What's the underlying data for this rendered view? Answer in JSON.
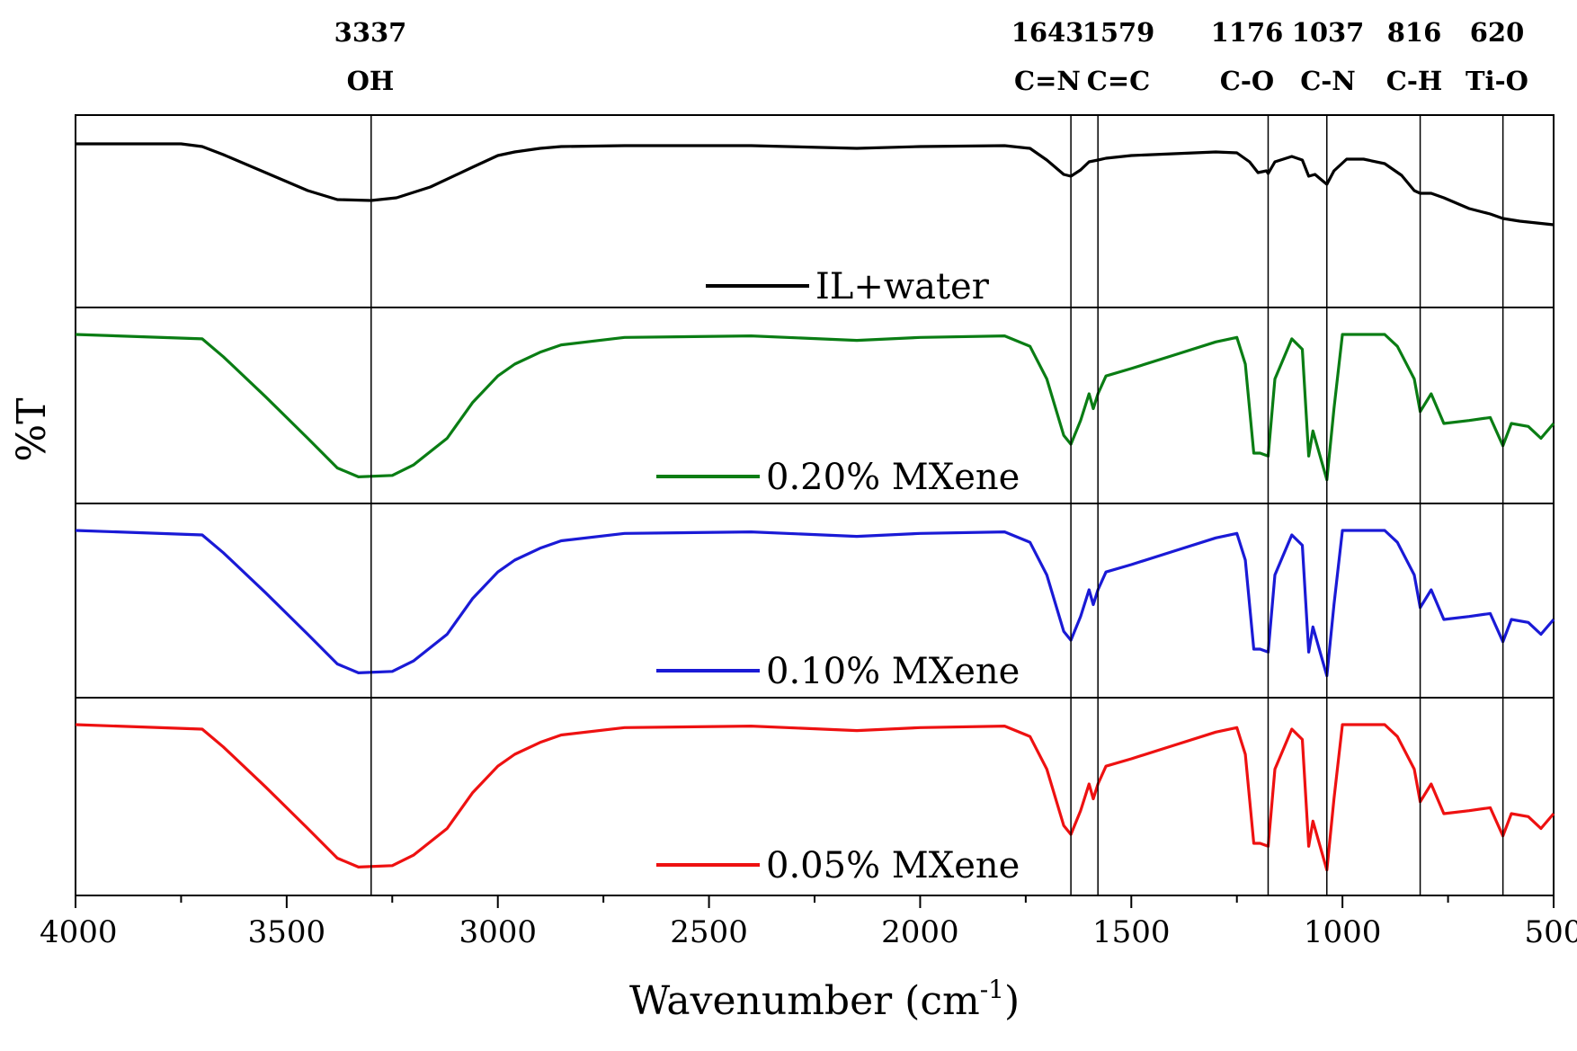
{
  "chart_data": {
    "type": "line",
    "title": "",
    "xlabel": "Wavenumber (cm-1)",
    "xlabel_main": "Wavenumber (cm",
    "xlabel_sup": "-1",
    "xlabel_end": ")",
    "ylabel": "%T",
    "xlim": [
      4000,
      500
    ],
    "x_reversed": true,
    "x_ticks": [
      4000,
      3500,
      3000,
      2500,
      2000,
      1500,
      1000,
      500
    ],
    "x_tick_labels": [
      "4000",
      "3500",
      "3000",
      "2500",
      "2000",
      "1500",
      "1000",
      "500"
    ],
    "y_ticks_shown": false,
    "grid": false,
    "layout": "stacked-panels",
    "peak_lines": [
      {
        "x": 3300,
        "value": "3337",
        "group": "OH"
      },
      {
        "x": 1643,
        "value": "1643",
        "group": "C=N"
      },
      {
        "x": 1579,
        "value": "1579",
        "group": "C=C"
      },
      {
        "x": 1176,
        "value": "1176",
        "group": "C-O"
      },
      {
        "x": 1037,
        "value": "1037",
        "group": "C-N"
      },
      {
        "x": 816,
        "value": "816",
        "group": "C-H"
      },
      {
        "x": 620,
        "value": "620",
        "group": "Ti-O"
      }
    ],
    "series": [
      {
        "name": "IL+water",
        "color": "#000000",
        "points": [
          [
            4000,
            0.0
          ],
          [
            3750,
            0.0
          ],
          [
            3700,
            -0.03
          ],
          [
            3650,
            -0.12
          ],
          [
            3550,
            -0.32
          ],
          [
            3450,
            -0.52
          ],
          [
            3380,
            -0.62
          ],
          [
            3300,
            -0.63
          ],
          [
            3240,
            -0.6
          ],
          [
            3160,
            -0.48
          ],
          [
            3060,
            -0.26
          ],
          [
            3000,
            -0.13
          ],
          [
            2960,
            -0.09
          ],
          [
            2900,
            -0.05
          ],
          [
            2850,
            -0.03
          ],
          [
            2700,
            -0.02
          ],
          [
            2400,
            -0.02
          ],
          [
            2150,
            -0.05
          ],
          [
            2000,
            -0.03
          ],
          [
            1800,
            -0.02
          ],
          [
            1740,
            -0.05
          ],
          [
            1700,
            -0.18
          ],
          [
            1660,
            -0.34
          ],
          [
            1643,
            -0.36
          ],
          [
            1620,
            -0.29
          ],
          [
            1600,
            -0.2
          ],
          [
            1579,
            -0.18
          ],
          [
            1560,
            -0.16
          ],
          [
            1500,
            -0.13
          ],
          [
            1400,
            -0.11
          ],
          [
            1300,
            -0.09
          ],
          [
            1250,
            -0.1
          ],
          [
            1220,
            -0.2
          ],
          [
            1200,
            -0.32
          ],
          [
            1180,
            -0.3
          ],
          [
            1176,
            -0.33
          ],
          [
            1160,
            -0.2
          ],
          [
            1120,
            -0.14
          ],
          [
            1095,
            -0.18
          ],
          [
            1080,
            -0.36
          ],
          [
            1065,
            -0.34
          ],
          [
            1050,
            -0.4
          ],
          [
            1037,
            -0.45
          ],
          [
            1020,
            -0.3
          ],
          [
            990,
            -0.17
          ],
          [
            950,
            -0.17
          ],
          [
            900,
            -0.22
          ],
          [
            860,
            -0.35
          ],
          [
            830,
            -0.52
          ],
          [
            816,
            -0.55
          ],
          [
            790,
            -0.55
          ],
          [
            760,
            -0.6
          ],
          [
            700,
            -0.72
          ],
          [
            650,
            -0.78
          ],
          [
            620,
            -0.83
          ],
          [
            580,
            -0.86
          ],
          [
            540,
            -0.88
          ],
          [
            500,
            -0.9
          ]
        ]
      },
      {
        "name": "0.20% MXene",
        "color": "#0a7d14",
        "points": [
          [
            4000,
            0.0
          ],
          [
            3700,
            -0.03
          ],
          [
            3650,
            -0.15
          ],
          [
            3550,
            -0.42
          ],
          [
            3450,
            -0.7
          ],
          [
            3380,
            -0.9
          ],
          [
            3330,
            -0.96
          ],
          [
            3250,
            -0.95
          ],
          [
            3200,
            -0.88
          ],
          [
            3120,
            -0.7
          ],
          [
            3060,
            -0.46
          ],
          [
            3000,
            -0.28
          ],
          [
            2960,
            -0.2
          ],
          [
            2900,
            -0.12
          ],
          [
            2850,
            -0.07
          ],
          [
            2700,
            -0.02
          ],
          [
            2400,
            -0.01
          ],
          [
            2150,
            -0.04
          ],
          [
            2000,
            -0.02
          ],
          [
            1800,
            -0.01
          ],
          [
            1740,
            -0.08
          ],
          [
            1700,
            -0.3
          ],
          [
            1660,
            -0.68
          ],
          [
            1643,
            -0.74
          ],
          [
            1620,
            -0.58
          ],
          [
            1600,
            -0.4
          ],
          [
            1590,
            -0.5
          ],
          [
            1579,
            -0.4
          ],
          [
            1560,
            -0.28
          ],
          [
            1500,
            -0.23
          ],
          [
            1400,
            -0.14
          ],
          [
            1300,
            -0.05
          ],
          [
            1250,
            -0.02
          ],
          [
            1230,
            -0.2
          ],
          [
            1210,
            -0.8
          ],
          [
            1195,
            -0.8
          ],
          [
            1176,
            -0.82
          ],
          [
            1160,
            -0.3
          ],
          [
            1120,
            -0.03
          ],
          [
            1095,
            -0.1
          ],
          [
            1080,
            -0.82
          ],
          [
            1070,
            -0.65
          ],
          [
            1050,
            -0.85
          ],
          [
            1037,
            -0.98
          ],
          [
            1020,
            -0.5
          ],
          [
            1000,
            0.0
          ],
          [
            900,
            0.0
          ],
          [
            870,
            -0.08
          ],
          [
            830,
            -0.3
          ],
          [
            816,
            -0.52
          ],
          [
            790,
            -0.4
          ],
          [
            760,
            -0.6
          ],
          [
            700,
            -0.58
          ],
          [
            650,
            -0.56
          ],
          [
            620,
            -0.75
          ],
          [
            600,
            -0.6
          ],
          [
            560,
            -0.62
          ],
          [
            530,
            -0.7
          ],
          [
            500,
            -0.6
          ]
        ]
      },
      {
        "name": "0.10% MXene",
        "color": "#1a1ad6",
        "points": [
          [
            4000,
            0.0
          ],
          [
            3700,
            -0.03
          ],
          [
            3650,
            -0.15
          ],
          [
            3550,
            -0.42
          ],
          [
            3450,
            -0.7
          ],
          [
            3380,
            -0.9
          ],
          [
            3330,
            -0.96
          ],
          [
            3250,
            -0.95
          ],
          [
            3200,
            -0.88
          ],
          [
            3120,
            -0.7
          ],
          [
            3060,
            -0.46
          ],
          [
            3000,
            -0.28
          ],
          [
            2960,
            -0.2
          ],
          [
            2900,
            -0.12
          ],
          [
            2850,
            -0.07
          ],
          [
            2700,
            -0.02
          ],
          [
            2400,
            -0.01
          ],
          [
            2150,
            -0.04
          ],
          [
            2000,
            -0.02
          ],
          [
            1800,
            -0.01
          ],
          [
            1740,
            -0.08
          ],
          [
            1700,
            -0.3
          ],
          [
            1660,
            -0.68
          ],
          [
            1643,
            -0.74
          ],
          [
            1620,
            -0.58
          ],
          [
            1600,
            -0.4
          ],
          [
            1590,
            -0.5
          ],
          [
            1579,
            -0.4
          ],
          [
            1560,
            -0.28
          ],
          [
            1500,
            -0.23
          ],
          [
            1400,
            -0.14
          ],
          [
            1300,
            -0.05
          ],
          [
            1250,
            -0.02
          ],
          [
            1230,
            -0.2
          ],
          [
            1210,
            -0.8
          ],
          [
            1195,
            -0.8
          ],
          [
            1176,
            -0.82
          ],
          [
            1160,
            -0.3
          ],
          [
            1120,
            -0.03
          ],
          [
            1095,
            -0.1
          ],
          [
            1080,
            -0.82
          ],
          [
            1070,
            -0.65
          ],
          [
            1050,
            -0.85
          ],
          [
            1037,
            -0.98
          ],
          [
            1020,
            -0.5
          ],
          [
            1000,
            0.0
          ],
          [
            900,
            0.0
          ],
          [
            870,
            -0.08
          ],
          [
            830,
            -0.3
          ],
          [
            816,
            -0.52
          ],
          [
            790,
            -0.4
          ],
          [
            760,
            -0.6
          ],
          [
            700,
            -0.58
          ],
          [
            650,
            -0.56
          ],
          [
            620,
            -0.75
          ],
          [
            600,
            -0.6
          ],
          [
            560,
            -0.62
          ],
          [
            530,
            -0.7
          ],
          [
            500,
            -0.6
          ]
        ]
      },
      {
        "name": "0.05% MXene",
        "color": "#ee1111",
        "points": [
          [
            4000,
            0.0
          ],
          [
            3700,
            -0.03
          ],
          [
            3650,
            -0.15
          ],
          [
            3550,
            -0.42
          ],
          [
            3450,
            -0.7
          ],
          [
            3380,
            -0.9
          ],
          [
            3330,
            -0.96
          ],
          [
            3250,
            -0.95
          ],
          [
            3200,
            -0.88
          ],
          [
            3120,
            -0.7
          ],
          [
            3060,
            -0.46
          ],
          [
            3000,
            -0.28
          ],
          [
            2960,
            -0.2
          ],
          [
            2900,
            -0.12
          ],
          [
            2850,
            -0.07
          ],
          [
            2700,
            -0.02
          ],
          [
            2400,
            -0.01
          ],
          [
            2150,
            -0.04
          ],
          [
            2000,
            -0.02
          ],
          [
            1800,
            -0.01
          ],
          [
            1740,
            -0.08
          ],
          [
            1700,
            -0.3
          ],
          [
            1660,
            -0.68
          ],
          [
            1643,
            -0.74
          ],
          [
            1620,
            -0.58
          ],
          [
            1600,
            -0.4
          ],
          [
            1590,
            -0.5
          ],
          [
            1579,
            -0.4
          ],
          [
            1560,
            -0.28
          ],
          [
            1500,
            -0.23
          ],
          [
            1400,
            -0.14
          ],
          [
            1300,
            -0.05
          ],
          [
            1250,
            -0.02
          ],
          [
            1230,
            -0.2
          ],
          [
            1210,
            -0.8
          ],
          [
            1195,
            -0.8
          ],
          [
            1176,
            -0.82
          ],
          [
            1160,
            -0.3
          ],
          [
            1120,
            -0.03
          ],
          [
            1095,
            -0.1
          ],
          [
            1080,
            -0.82
          ],
          [
            1070,
            -0.65
          ],
          [
            1050,
            -0.85
          ],
          [
            1037,
            -0.98
          ],
          [
            1020,
            -0.5
          ],
          [
            1000,
            0.0
          ],
          [
            900,
            0.0
          ],
          [
            870,
            -0.08
          ],
          [
            830,
            -0.3
          ],
          [
            816,
            -0.52
          ],
          [
            790,
            -0.4
          ],
          [
            760,
            -0.6
          ],
          [
            700,
            -0.58
          ],
          [
            650,
            -0.56
          ],
          [
            620,
            -0.75
          ],
          [
            600,
            -0.6
          ],
          [
            560,
            -0.62
          ],
          [
            530,
            -0.7
          ],
          [
            500,
            -0.6
          ]
        ]
      }
    ]
  }
}
